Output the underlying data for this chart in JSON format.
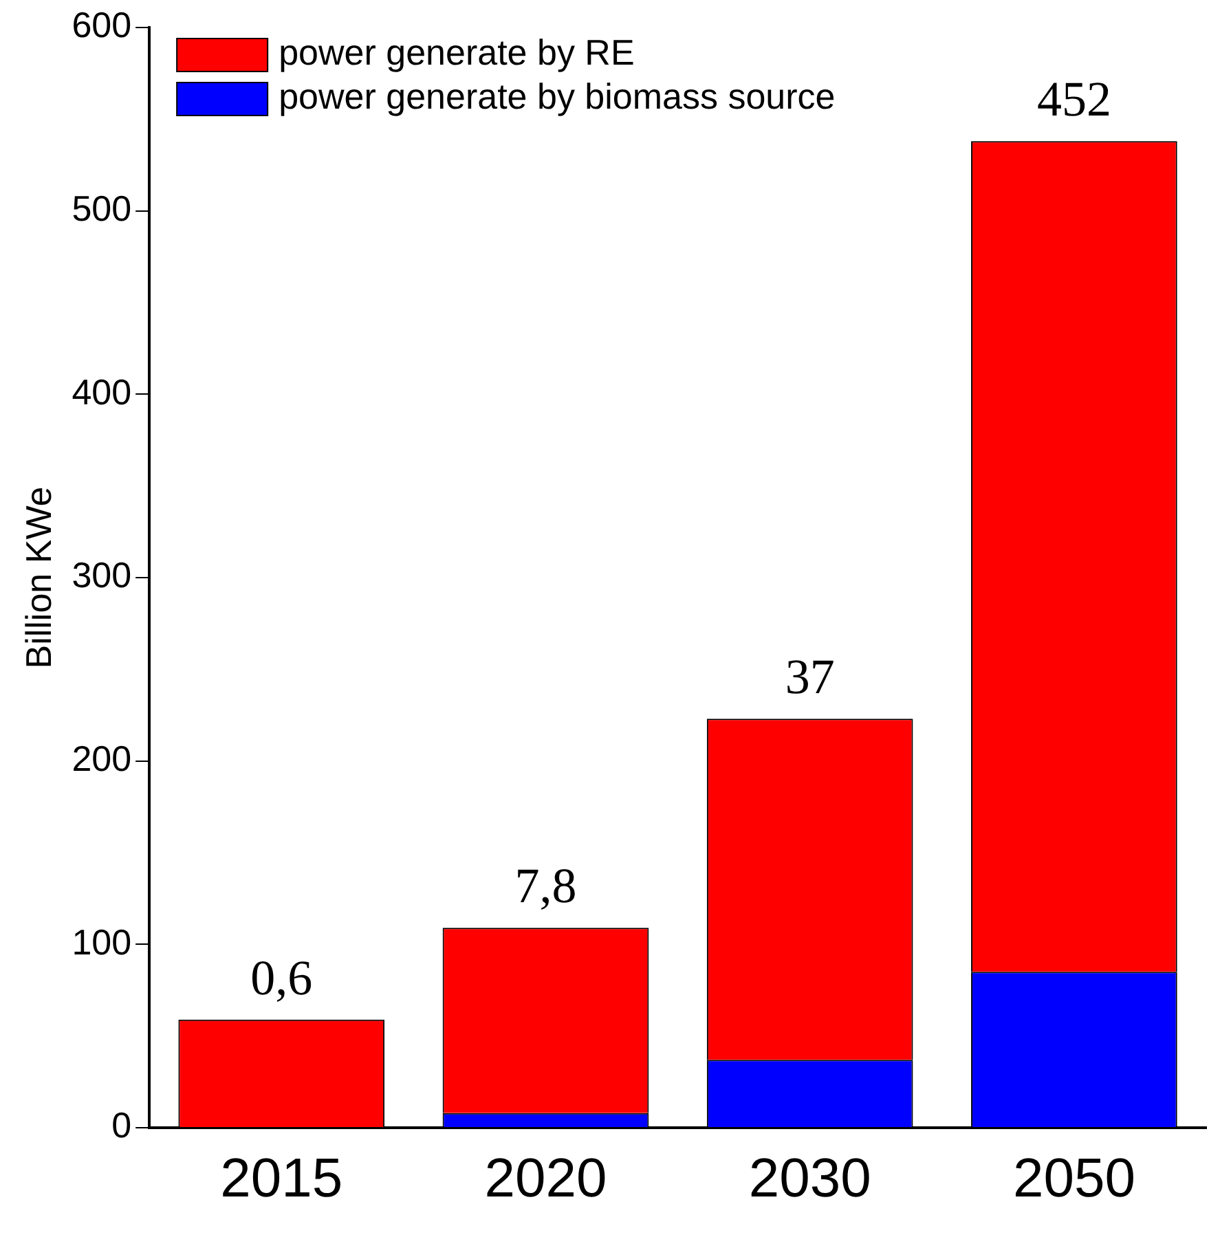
{
  "chart_data": {
    "type": "bar",
    "stacked": true,
    "ylabel": "Billion KWe",
    "categories": [
      "2015",
      "2020",
      "2030",
      "2050"
    ],
    "series": [
      {
        "name": "power generate by biomass source",
        "color": "#0000ff",
        "values": [
          0,
          8,
          37,
          85
        ]
      },
      {
        "name": "power generate by RE",
        "color": "#ff0000",
        "values": [
          59,
          101,
          186,
          453
        ]
      }
    ],
    "ylim": [
      0,
      600
    ],
    "yticks": [
      0,
      100,
      200,
      300,
      400,
      500,
      600
    ],
    "grid": false,
    "legend": "top left",
    "annotations": [
      {
        "text": "0,6",
        "x": "2015",
        "y": 59
      },
      {
        "text": "7,8",
        "x": "2020",
        "y": 109
      },
      {
        "text": "37",
        "x": "2030",
        "y": 223
      },
      {
        "text": "452",
        "x": "2050",
        "y": 538
      }
    ]
  }
}
